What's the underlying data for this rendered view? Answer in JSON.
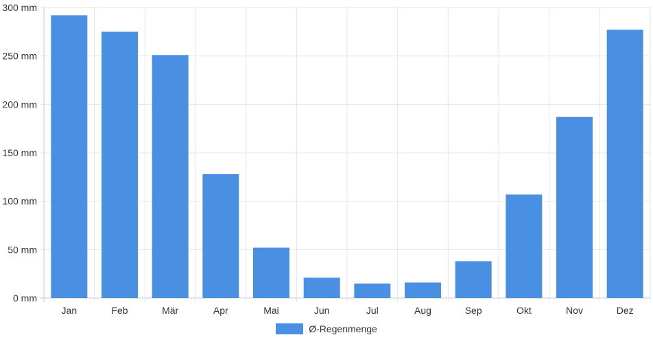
{
  "chart_data": {
    "type": "bar",
    "categories": [
      "Jan",
      "Feb",
      "Mär",
      "Apr",
      "Mai",
      "Jun",
      "Jul",
      "Aug",
      "Sep",
      "Okt",
      "Nov",
      "Dez"
    ],
    "series": [
      {
        "name": "Ø-Regenmenge",
        "values": [
          292,
          275,
          251,
          128,
          52,
          21,
          15,
          16,
          38,
          107,
          187,
          277
        ]
      }
    ],
    "unit": "mm",
    "ylim": [
      0,
      300
    ],
    "yticks": [
      "0 mm",
      "50 mm",
      "100 mm",
      "150 mm",
      "200 mm",
      "250 mm",
      "300 mm"
    ],
    "grid": true,
    "legend_position": "bottom",
    "bar_color": "#4a90e2"
  }
}
